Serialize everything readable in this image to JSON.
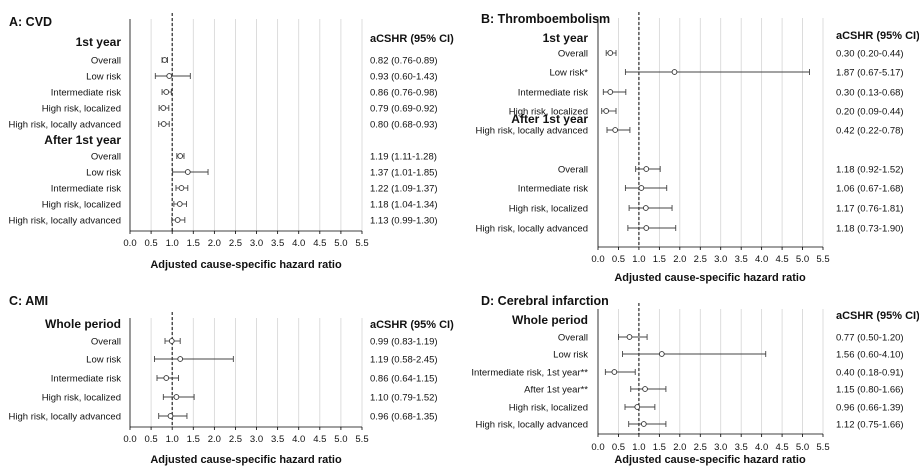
{
  "chart_data": [
    {
      "type": "forest",
      "title": "A: CVD",
      "ci_header": "aCSHR (95% CI)",
      "xlabel": "Adjusted cause-specific hazard ratio",
      "xlim": [
        0,
        5.5
      ],
      "xticks": [
        "0.0",
        "0.5",
        "1.0",
        "1.5",
        "2.0",
        "2.5",
        "3.0",
        "3.5",
        "4.0",
        "4.5",
        "5.0",
        "5.5"
      ],
      "reference": 1.0,
      "groups": [
        {
          "title": "1st year",
          "rows": [
            {
              "label": "Overall",
              "est": 0.82,
              "lo": 0.76,
              "hi": 0.89,
              "ci_text": "0.82 (0.76-0.89)"
            },
            {
              "label": "Low risk",
              "est": 0.93,
              "lo": 0.6,
              "hi": 1.43,
              "ci_text": "0.93 (0.60-1.43)"
            },
            {
              "label": "Intermediate risk",
              "est": 0.86,
              "lo": 0.76,
              "hi": 0.98,
              "ci_text": "0.86 (0.76-0.98)"
            },
            {
              "label": "High risk, localized",
              "est": 0.79,
              "lo": 0.69,
              "hi": 0.92,
              "ci_text": "0.79 (0.69-0.92)"
            },
            {
              "label": "High risk, locally advanced",
              "est": 0.8,
              "lo": 0.68,
              "hi": 0.93,
              "ci_text": "0.80 (0.68-0.93)"
            }
          ]
        },
        {
          "title": "After 1st year",
          "rows": [
            {
              "label": "Overall",
              "est": 1.19,
              "lo": 1.11,
              "hi": 1.28,
              "ci_text": "1.19 (1.11-1.28)"
            },
            {
              "label": "Low risk",
              "est": 1.37,
              "lo": 1.01,
              "hi": 1.85,
              "ci_text": "1.37 (1.01-1.85)"
            },
            {
              "label": "Intermediate risk",
              "est": 1.22,
              "lo": 1.09,
              "hi": 1.37,
              "ci_text": "1.22 (1.09-1.37)"
            },
            {
              "label": "High risk, localized",
              "est": 1.18,
              "lo": 1.04,
              "hi": 1.34,
              "ci_text": "1.18 (1.04-1.34)"
            },
            {
              "label": "High risk, locally advanced",
              "est": 1.13,
              "lo": 0.99,
              "hi": 1.3,
              "ci_text": "1.13 (0.99-1.30)"
            }
          ]
        }
      ]
    },
    {
      "type": "forest",
      "title": "B: Thromboembolism",
      "ci_header": "aCSHR (95% CI)",
      "xlabel": "Adjusted cause-specific hazard ratio",
      "xlim": [
        0,
        5.5
      ],
      "xticks": [
        "0.0",
        "0.5",
        "1.0",
        "1.5",
        "2.0",
        "2.5",
        "3.0",
        "3.5",
        "4.0",
        "4.5",
        "5.0",
        "5.5"
      ],
      "reference": 1.0,
      "groups": [
        {
          "title": "1st year",
          "rows": [
            {
              "label": "Overall",
              "est": 0.3,
              "lo": 0.2,
              "hi": 0.44,
              "ci_text": "0.30 (0.20-0.44)"
            },
            {
              "label": "Low risk*",
              "est": 1.87,
              "lo": 0.67,
              "hi": 5.17,
              "ci_text": "1.87 (0.67-5.17)"
            },
            {
              "label": "Intermediate risk",
              "est": 0.3,
              "lo": 0.13,
              "hi": 0.68,
              "ci_text": "0.30 (0.13-0.68)"
            },
            {
              "label": "High risk, localized",
              "est": 0.2,
              "lo": 0.09,
              "hi": 0.44,
              "ci_text": "0.20 (0.09-0.44)"
            },
            {
              "label": "High risk, locally advanced",
              "est": 0.42,
              "lo": 0.22,
              "hi": 0.78,
              "ci_text": "0.42 (0.22-0.78)"
            }
          ]
        },
        {
          "title": "After 1st year",
          "rows": [
            {
              "label": "Overall",
              "est": 1.18,
              "lo": 0.92,
              "hi": 1.52,
              "ci_text": "1.18 (0.92-1.52)"
            },
            {
              "label": "Intermediate risk",
              "est": 1.06,
              "lo": 0.67,
              "hi": 1.68,
              "ci_text": "1.06 (0.67-1.68)"
            },
            {
              "label": "High risk, localized",
              "est": 1.17,
              "lo": 0.76,
              "hi": 1.81,
              "ci_text": "1.17 (0.76-1.81)"
            },
            {
              "label": "High risk, locally advanced",
              "est": 1.18,
              "lo": 0.73,
              "hi": 1.9,
              "ci_text": "1.18 (0.73-1.90)"
            }
          ]
        }
      ]
    },
    {
      "type": "forest",
      "title": "C: AMI",
      "ci_header": "aCSHR (95% CI)",
      "xlabel": "Adjusted cause-specific hazard ratio",
      "xlim": [
        0,
        5.5
      ],
      "xticks": [
        "0.0",
        "0.5",
        "1.0",
        "1.5",
        "2.0",
        "2.5",
        "3.0",
        "3.5",
        "4.0",
        "4.5",
        "5.0",
        "5.5"
      ],
      "reference": 1.0,
      "groups": [
        {
          "title": "Whole period",
          "rows": [
            {
              "label": "Overall",
              "est": 0.99,
              "lo": 0.83,
              "hi": 1.19,
              "ci_text": "0.99 (0.83-1.19)"
            },
            {
              "label": "Low risk",
              "est": 1.19,
              "lo": 0.58,
              "hi": 2.45,
              "ci_text": "1.19 (0.58-2.45)"
            },
            {
              "label": "Intermediate risk",
              "est": 0.86,
              "lo": 0.64,
              "hi": 1.15,
              "ci_text": "0.86 (0.64-1.15)"
            },
            {
              "label": "High risk, localized",
              "est": 1.1,
              "lo": 0.79,
              "hi": 1.52,
              "ci_text": "1.10 (0.79-1.52)"
            },
            {
              "label": "High risk, locally advanced",
              "est": 0.96,
              "lo": 0.68,
              "hi": 1.35,
              "ci_text": "0.96 (0.68-1.35)"
            }
          ]
        }
      ]
    },
    {
      "type": "forest",
      "title": "D: Cerebral infarction",
      "ci_header": "aCSHR (95% CI)",
      "xlabel": "Adjusted cause-specific hazard ratio",
      "xlim": [
        0,
        5.5
      ],
      "xticks": [
        "0.0",
        "0.5",
        "1.0",
        "1.5",
        "2.0",
        "2.5",
        "3.0",
        "3.5",
        "4.0",
        "4.5",
        "5.0",
        "5.5"
      ],
      "reference": 1.0,
      "groups": [
        {
          "title": "Whole period",
          "rows": [
            {
              "label": "Overall",
              "est": 0.77,
              "lo": 0.5,
              "hi": 1.2,
              "ci_text": "0.77 (0.50-1.20)"
            },
            {
              "label": "Low risk",
              "est": 1.56,
              "lo": 0.6,
              "hi": 4.1,
              "ci_text": "1.56 (0.60-4.10)"
            },
            {
              "label": "Intermediate risk, 1st year**",
              "est": 0.4,
              "lo": 0.18,
              "hi": 0.91,
              "ci_text": "0.40 (0.18-0.91)"
            },
            {
              "label": "After 1st year**",
              "est": 1.15,
              "lo": 0.8,
              "hi": 1.66,
              "ci_text": "1.15 (0.80-1.66)"
            },
            {
              "label": "High risk, localized",
              "est": 0.96,
              "lo": 0.66,
              "hi": 1.39,
              "ci_text": "0.96 (0.66-1.39)"
            },
            {
              "label": "High risk, locally advanced",
              "est": 1.12,
              "lo": 0.75,
              "hi": 1.66,
              "ci_text": "1.12 (0.75-1.66)"
            }
          ]
        }
      ]
    }
  ]
}
